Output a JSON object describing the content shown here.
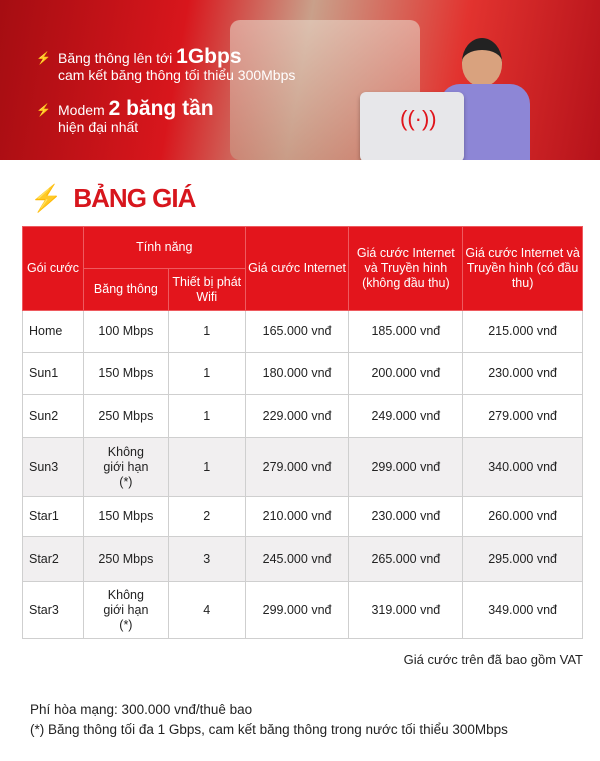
{
  "banner": {
    "feature1": {
      "pre": "Băng thông lên tới ",
      "bold": "1Gbps",
      "line2": "cam kết băng thông tối thiểu 300Mbps"
    },
    "feature2": {
      "pre": "Modem ",
      "bold": "2 băng tần",
      "line2": "hiện đại nhất"
    },
    "icon": "lightning-bolt-icon"
  },
  "title": "BẢNG GIÁ",
  "accent": "#e3151c",
  "table": {
    "headers": {
      "package": "Gói cước",
      "features": "Tính năng",
      "bandwidth": "Băng thông",
      "wifi": "Thiết bị phát Wifi",
      "internet": "Giá cước Internet",
      "tv_no": "Giá cước Internet và Truyền hình (không đầu thu)",
      "tv_yes": "Giá cước Internet và Truyền hình (có đầu thu)"
    },
    "rows": [
      {
        "name": "Home",
        "bandwidth": "100 Mbps",
        "wifi": "1",
        "internet": "165.000 vnđ",
        "tv_no": "185.000 vnđ",
        "tv_yes": "215.000 vnđ"
      },
      {
        "name": "Sun1",
        "bandwidth": "150 Mbps",
        "wifi": "1",
        "internet": "180.000 vnđ",
        "tv_no": "200.000 vnđ",
        "tv_yes": "230.000 vnđ"
      },
      {
        "name": "Sun2",
        "bandwidth": "250 Mbps",
        "wifi": "1",
        "internet": "229.000 vnđ",
        "tv_no": "249.000 vnđ",
        "tv_yes": "279.000 vnđ"
      },
      {
        "name": "Sun3",
        "bandwidth": "Không giới hạn (*)",
        "wifi": "1",
        "internet": "279.000 vnđ",
        "tv_no": "299.000 vnđ",
        "tv_yes": "340.000 vnđ"
      },
      {
        "name": "Star1",
        "bandwidth": "150 Mbps",
        "wifi": "2",
        "internet": "210.000 vnđ",
        "tv_no": "230.000 vnđ",
        "tv_yes": "260.000 vnđ"
      },
      {
        "name": "Star2",
        "bandwidth": "250 Mbps",
        "wifi": "3",
        "internet": "245.000 vnđ",
        "tv_no": "265.000 vnđ",
        "tv_yes": "295.000 vnđ"
      },
      {
        "name": "Star3",
        "bandwidth": "Không giới hạn (*)",
        "wifi": "4",
        "internet": "299.000 vnđ",
        "tv_no": "319.000 vnđ",
        "tv_yes": "349.000 vnđ"
      }
    ]
  },
  "vat_note": "Giá cước trên đã bao gồm VAT",
  "footer": {
    "fee": "Phí hòa mạng: 300.000 vnđ/thuê bao",
    "note": "(*) Băng thông tối đa 1 Gbps, cam kết băng thông trong nước tối thiểu 300Mbps"
  }
}
